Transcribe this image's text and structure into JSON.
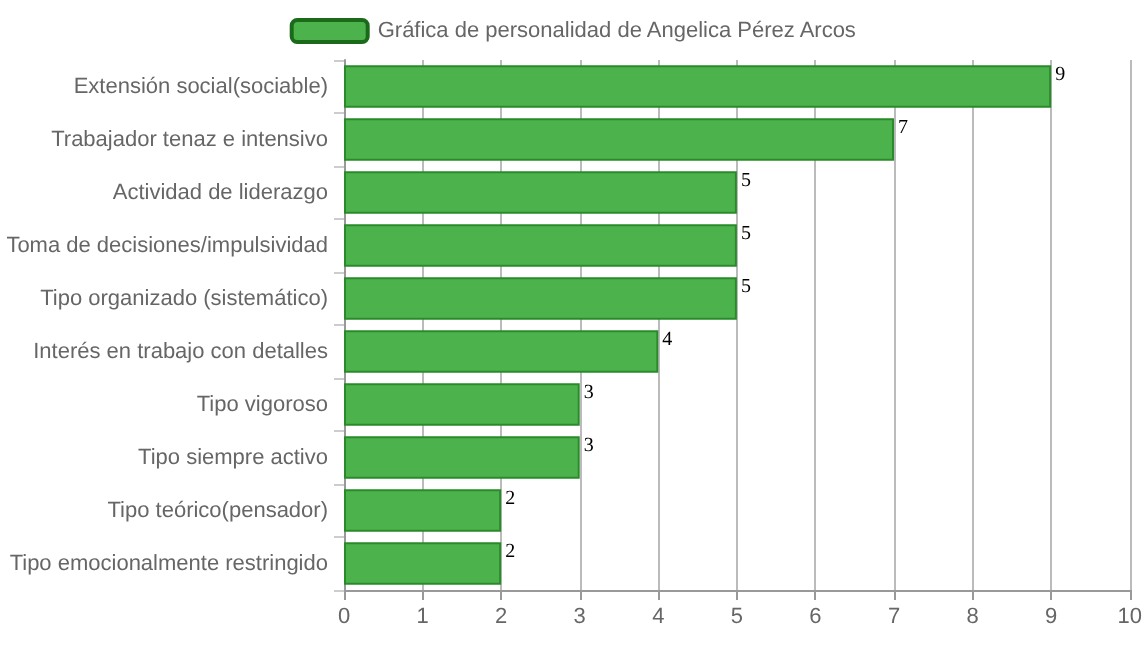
{
  "chart_data": {
    "type": "bar",
    "orientation": "horizontal",
    "categories": [
      "Extensión social(sociable)",
      "Trabajador tenaz e intensivo",
      "Actividad de liderazgo",
      "Toma de decisiones/impulsividad",
      "Tipo organizado (sistemático)",
      "Interés en trabajo con detalles",
      "Tipo vigoroso",
      "Tipo siempre activo",
      "Tipo teórico(pensador)",
      "Tipo emocionalmente restringido"
    ],
    "series": [
      {
        "name": "Gráfica de personalidad de Angelica Pérez Arcos",
        "color": "#4cb34c",
        "values": [
          9,
          7,
          5,
          5,
          5,
          4,
          3,
          3,
          2,
          2
        ]
      }
    ],
    "xlim": [
      0,
      10
    ],
    "xticks": [
      0,
      1,
      2,
      3,
      4,
      5,
      6,
      7,
      8,
      9,
      10
    ],
    "grid": "x",
    "legend": "top",
    "data_labels": true
  }
}
